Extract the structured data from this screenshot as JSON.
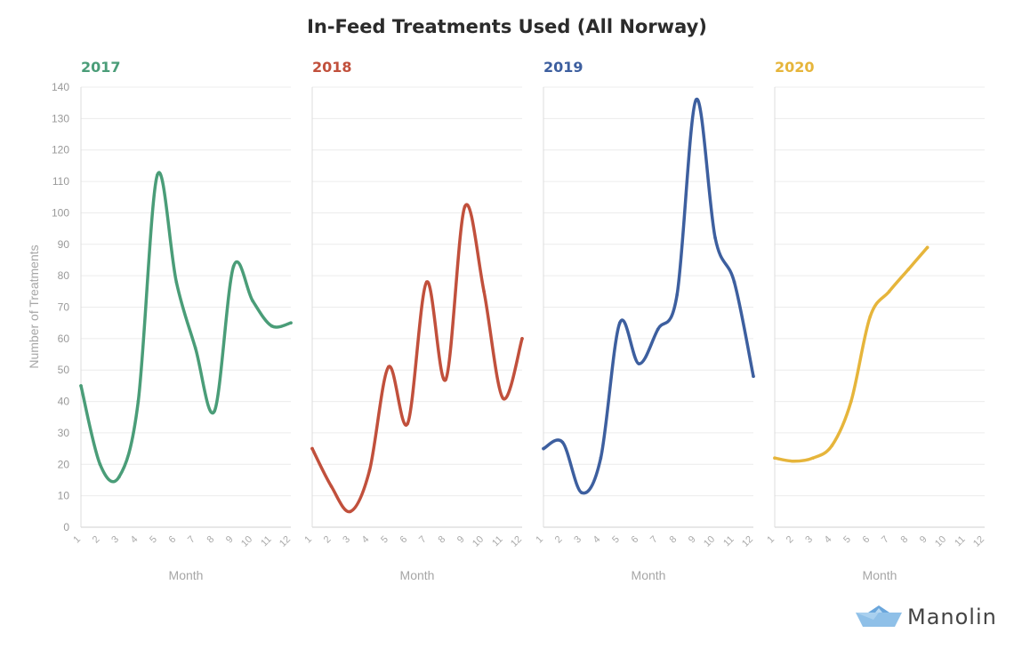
{
  "chart_data": {
    "type": "line",
    "title": "In-Feed Treatments Used (All Norway)",
    "ylabel": "Number of Treatments",
    "xlabel": "Month",
    "ylim": [
      0,
      140
    ],
    "yticks": [
      0,
      10,
      20,
      30,
      40,
      50,
      60,
      70,
      80,
      90,
      100,
      110,
      120,
      130,
      140
    ],
    "xticks": [
      1,
      2,
      3,
      4,
      5,
      6,
      7,
      8,
      9,
      10,
      11,
      12
    ],
    "grid": true,
    "panels": [
      {
        "name": "2017",
        "color": "#4a9d78",
        "x": [
          1,
          2,
          3,
          4,
          5,
          6,
          7,
          8,
          9,
          10,
          11,
          12
        ],
        "values": [
          45,
          20,
          16,
          40,
          112,
          78,
          57,
          37,
          83,
          72,
          64,
          65
        ]
      },
      {
        "name": "2018",
        "color": "#c1503c",
        "x": [
          1,
          2,
          3,
          4,
          5,
          6,
          7,
          8,
          9,
          10,
          11,
          12
        ],
        "values": [
          25,
          13,
          5,
          18,
          51,
          33,
          78,
          47,
          102,
          75,
          41,
          60
        ]
      },
      {
        "name": "2019",
        "color": "#3d5f9f",
        "x": [
          1,
          2,
          3,
          4,
          5,
          6,
          7,
          8,
          9,
          10,
          11,
          12
        ],
        "values": [
          25,
          27,
          11,
          22,
          65,
          52,
          63,
          74,
          136,
          92,
          78,
          48
        ]
      },
      {
        "name": "2020",
        "color": "#e6b53b",
        "x": [
          1,
          2,
          3,
          4,
          5,
          6,
          7,
          8,
          9
        ],
        "values": [
          22,
          21,
          22,
          26,
          40,
          67,
          75,
          82,
          89
        ]
      }
    ]
  },
  "logo": {
    "text": "Manolin",
    "icon": "paper-boat-icon",
    "color": "#7fb3e0"
  }
}
